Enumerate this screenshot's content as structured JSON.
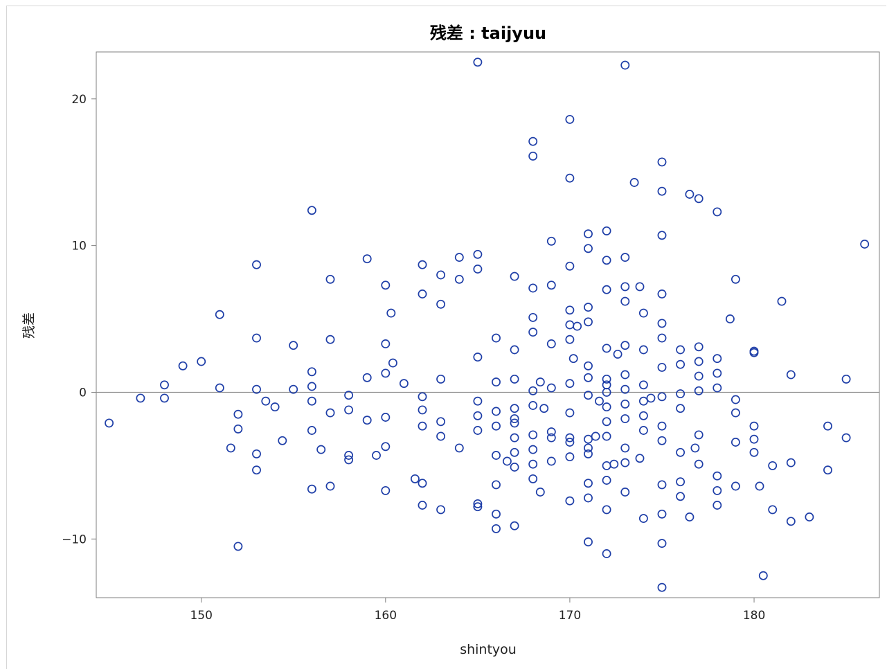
{
  "chart_data": {
    "type": "scatter",
    "title": "残差 : taijyuu",
    "xlabel": "shintyou",
    "ylabel": "残差",
    "xlim": [
      144.3,
      186.8
    ],
    "ylim": [
      -14.0,
      23.2
    ],
    "xticks": [
      150,
      160,
      170,
      180
    ],
    "yticks": [
      -10,
      0,
      10,
      20
    ],
    "xtick_labels": [
      "150",
      "160",
      "170",
      "180"
    ],
    "ytick_labels": [
      "−10",
      "0",
      "10",
      "20"
    ],
    "reference_line_y": 0,
    "grid": false,
    "legend": "none",
    "colors": {
      "marker": "#1f3fa8",
      "reference_line": "#8c8c8c",
      "frame": "#7f7f7f"
    },
    "points": [
      [
        145.0,
        -2.1
      ],
      [
        146.7,
        -0.4
      ],
      [
        148.0,
        0.5
      ],
      [
        148.0,
        -0.4
      ],
      [
        149.0,
        1.8
      ],
      [
        150.0,
        2.1
      ],
      [
        151.0,
        5.3
      ],
      [
        151.0,
        0.3
      ],
      [
        151.6,
        -3.8
      ],
      [
        152.0,
        -1.5
      ],
      [
        152.0,
        -2.5
      ],
      [
        152.0,
        -10.5
      ],
      [
        153.0,
        8.7
      ],
      [
        153.0,
        3.7
      ],
      [
        153.0,
        0.2
      ],
      [
        153.0,
        -4.2
      ],
      [
        153.0,
        -5.3
      ],
      [
        153.5,
        -0.6
      ],
      [
        154.0,
        -1.0
      ],
      [
        154.4,
        -3.3
      ],
      [
        155.0,
        3.2
      ],
      [
        155.0,
        0.2
      ],
      [
        156.0,
        12.4
      ],
      [
        156.0,
        1.4
      ],
      [
        156.0,
        0.4
      ],
      [
        156.0,
        -0.6
      ],
      [
        156.0,
        -2.6
      ],
      [
        156.0,
        -6.6
      ],
      [
        156.5,
        -3.9
      ],
      [
        157.0,
        7.7
      ],
      [
        157.0,
        3.6
      ],
      [
        157.0,
        -1.4
      ],
      [
        157.0,
        -6.4
      ],
      [
        158.0,
        -0.2
      ],
      [
        158.0,
        -1.2
      ],
      [
        158.0,
        -4.3
      ],
      [
        158.0,
        -4.6
      ],
      [
        159.0,
        9.1
      ],
      [
        159.0,
        1.0
      ],
      [
        159.0,
        -1.9
      ],
      [
        159.5,
        -4.3
      ],
      [
        160.0,
        7.3
      ],
      [
        160.0,
        3.3
      ],
      [
        160.0,
        1.3
      ],
      [
        160.0,
        -1.7
      ],
      [
        160.0,
        -3.7
      ],
      [
        160.0,
        -6.7
      ],
      [
        160.3,
        5.4
      ],
      [
        160.4,
        2.0
      ],
      [
        161.0,
        0.6
      ],
      [
        161.6,
        -5.9
      ],
      [
        162.0,
        8.7
      ],
      [
        162.0,
        6.7
      ],
      [
        162.0,
        -0.3
      ],
      [
        162.0,
        -1.2
      ],
      [
        162.0,
        -2.3
      ],
      [
        162.0,
        -6.2
      ],
      [
        162.0,
        -7.7
      ],
      [
        163.0,
        8.0
      ],
      [
        163.0,
        6.0
      ],
      [
        163.0,
        0.9
      ],
      [
        163.0,
        -2.0
      ],
      [
        163.0,
        -3.0
      ],
      [
        163.0,
        -8.0
      ],
      [
        164.0,
        9.2
      ],
      [
        164.0,
        7.7
      ],
      [
        164.0,
        -3.8
      ],
      [
        165.0,
        22.5
      ],
      [
        165.0,
        9.4
      ],
      [
        165.0,
        8.4
      ],
      [
        165.0,
        2.4
      ],
      [
        165.0,
        -0.6
      ],
      [
        165.0,
        -1.6
      ],
      [
        165.0,
        -2.6
      ],
      [
        165.0,
        -7.6
      ],
      [
        165.0,
        -7.8
      ],
      [
        166.0,
        3.7
      ],
      [
        166.0,
        0.7
      ],
      [
        166.0,
        -1.3
      ],
      [
        166.0,
        -2.3
      ],
      [
        166.0,
        -4.3
      ],
      [
        166.0,
        -6.3
      ],
      [
        166.0,
        -8.3
      ],
      [
        166.0,
        -9.3
      ],
      [
        166.6,
        -4.7
      ],
      [
        167.0,
        7.9
      ],
      [
        167.0,
        2.9
      ],
      [
        167.0,
        0.9
      ],
      [
        167.0,
        -1.1
      ],
      [
        167.0,
        -1.8
      ],
      [
        167.0,
        -2.1
      ],
      [
        167.0,
        -3.1
      ],
      [
        167.0,
        -4.1
      ],
      [
        167.0,
        -5.1
      ],
      [
        167.0,
        -9.1
      ],
      [
        168.0,
        17.1
      ],
      [
        168.0,
        16.1
      ],
      [
        168.0,
        7.1
      ],
      [
        168.0,
        5.1
      ],
      [
        168.0,
        4.1
      ],
      [
        168.0,
        0.1
      ],
      [
        168.0,
        -0.9
      ],
      [
        168.0,
        -2.9
      ],
      [
        168.0,
        -3.9
      ],
      [
        168.0,
        -4.9
      ],
      [
        168.0,
        -5.9
      ],
      [
        168.4,
        0.7
      ],
      [
        168.6,
        -1.1
      ],
      [
        168.4,
        -6.8
      ],
      [
        169.0,
        10.3
      ],
      [
        169.0,
        7.3
      ],
      [
        169.0,
        3.3
      ],
      [
        169.0,
        0.3
      ],
      [
        169.0,
        -2.7
      ],
      [
        169.0,
        -3.1
      ],
      [
        169.0,
        -4.7
      ],
      [
        170.0,
        18.6
      ],
      [
        170.0,
        14.6
      ],
      [
        170.0,
        8.6
      ],
      [
        170.0,
        5.6
      ],
      [
        170.0,
        4.6
      ],
      [
        170.0,
        3.6
      ],
      [
        170.0,
        0.6
      ],
      [
        170.0,
        -1.4
      ],
      [
        170.0,
        -3.1
      ],
      [
        170.0,
        -3.4
      ],
      [
        170.0,
        -4.4
      ],
      [
        170.0,
        -7.4
      ],
      [
        170.2,
        2.3
      ],
      [
        170.4,
        4.5
      ],
      [
        171.0,
        10.8
      ],
      [
        171.0,
        9.8
      ],
      [
        171.0,
        5.8
      ],
      [
        171.0,
        4.8
      ],
      [
        171.0,
        1.8
      ],
      [
        171.0,
        1.0
      ],
      [
        171.0,
        -0.2
      ],
      [
        171.0,
        -3.2
      ],
      [
        171.0,
        -3.8
      ],
      [
        171.0,
        -4.2
      ],
      [
        171.0,
        -6.2
      ],
      [
        171.0,
        -7.2
      ],
      [
        171.0,
        -10.2
      ],
      [
        171.4,
        -3.0
      ],
      [
        171.6,
        -0.6
      ],
      [
        172.0,
        11.0
      ],
      [
        172.0,
        9.0
      ],
      [
        172.0,
        7.0
      ],
      [
        172.0,
        3.0
      ],
      [
        172.0,
        0.9
      ],
      [
        172.0,
        0.5
      ],
      [
        172.0,
        0.0
      ],
      [
        172.0,
        -1.0
      ],
      [
        172.0,
        -2.0
      ],
      [
        172.0,
        -3.0
      ],
      [
        172.0,
        -5.0
      ],
      [
        172.0,
        -6.0
      ],
      [
        172.0,
        -8.0
      ],
      [
        172.0,
        -11.0
      ],
      [
        172.4,
        -4.9
      ],
      [
        172.6,
        2.6
      ],
      [
        173.0,
        22.3
      ],
      [
        173.0,
        9.2
      ],
      [
        173.0,
        7.2
      ],
      [
        173.0,
        6.2
      ],
      [
        173.0,
        3.2
      ],
      [
        173.0,
        1.2
      ],
      [
        173.0,
        0.2
      ],
      [
        173.0,
        -0.8
      ],
      [
        173.0,
        -1.8
      ],
      [
        173.0,
        -3.8
      ],
      [
        173.0,
        -4.8
      ],
      [
        173.0,
        -6.8
      ],
      [
        173.5,
        14.3
      ],
      [
        173.8,
        7.2
      ],
      [
        173.8,
        -4.5
      ],
      [
        174.0,
        5.4
      ],
      [
        174.0,
        2.9
      ],
      [
        174.0,
        0.5
      ],
      [
        174.0,
        -0.6
      ],
      [
        174.0,
        -1.6
      ],
      [
        174.0,
        -2.6
      ],
      [
        174.0,
        -8.6
      ],
      [
        174.4,
        -0.4
      ],
      [
        175.0,
        15.7
      ],
      [
        175.0,
        13.7
      ],
      [
        175.0,
        10.7
      ],
      [
        175.0,
        6.7
      ],
      [
        175.0,
        4.7
      ],
      [
        175.0,
        3.7
      ],
      [
        175.0,
        1.7
      ],
      [
        175.0,
        -0.3
      ],
      [
        175.0,
        -2.3
      ],
      [
        175.0,
        -3.3
      ],
      [
        175.0,
        -6.3
      ],
      [
        175.0,
        -8.3
      ],
      [
        175.0,
        -10.3
      ],
      [
        175.0,
        -13.3
      ],
      [
        176.0,
        2.9
      ],
      [
        176.0,
        1.9
      ],
      [
        176.0,
        -0.1
      ],
      [
        176.0,
        -1.1
      ],
      [
        176.0,
        -4.1
      ],
      [
        176.0,
        -6.1
      ],
      [
        176.0,
        -7.1
      ],
      [
        176.5,
        13.5
      ],
      [
        176.5,
        -8.5
      ],
      [
        176.8,
        -3.8
      ],
      [
        177.0,
        13.2
      ],
      [
        177.0,
        3.1
      ],
      [
        177.0,
        2.1
      ],
      [
        177.0,
        1.1
      ],
      [
        177.0,
        0.1
      ],
      [
        177.0,
        -2.9
      ],
      [
        177.0,
        -4.9
      ],
      [
        178.0,
        12.3
      ],
      [
        178.0,
        2.3
      ],
      [
        178.0,
        1.3
      ],
      [
        178.0,
        0.3
      ],
      [
        178.0,
        -5.7
      ],
      [
        178.0,
        -6.7
      ],
      [
        178.0,
        -7.7
      ],
      [
        178.7,
        5.0
      ],
      [
        179.0,
        7.7
      ],
      [
        179.0,
        -0.5
      ],
      [
        179.0,
        -1.4
      ],
      [
        179.0,
        -3.4
      ],
      [
        179.0,
        -6.4
      ],
      [
        180.0,
        2.8
      ],
      [
        180.0,
        2.7
      ],
      [
        180.0,
        -2.3
      ],
      [
        180.0,
        -3.2
      ],
      [
        180.0,
        -4.1
      ],
      [
        180.3,
        -6.4
      ],
      [
        180.5,
        -12.5
      ],
      [
        181.0,
        -5.0
      ],
      [
        181.0,
        -8.0
      ],
      [
        181.5,
        6.2
      ],
      [
        182.0,
        1.2
      ],
      [
        182.0,
        -4.8
      ],
      [
        182.0,
        -8.8
      ],
      [
        183.0,
        -8.5
      ],
      [
        184.0,
        -2.3
      ],
      [
        184.0,
        -5.3
      ],
      [
        185.0,
        0.9
      ],
      [
        185.0,
        -3.1
      ],
      [
        186.0,
        10.1
      ]
    ]
  }
}
